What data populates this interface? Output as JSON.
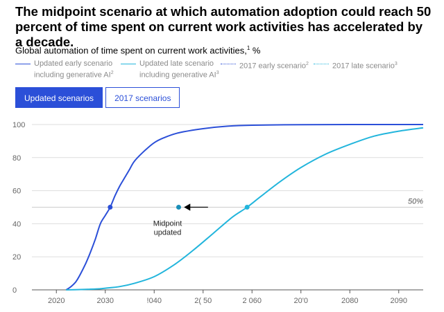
{
  "headline": "The midpoint scenario at which automation adoption could reach 50 percent of time spent on current work activities has accelerated by a decade.",
  "subtitle": {
    "text": "Global automation of time spent on current work activities,",
    "footnote": "1",
    "unit": " %"
  },
  "legend": [
    {
      "label": "Updated early scenario\nincluding generative AI",
      "footnote": "2",
      "color": "#2b4fd8",
      "style": "solid"
    },
    {
      "label": "Updated late scenario\nincluding generative AI",
      "footnote": "3",
      "color": "#22b5dc",
      "style": "solid"
    },
    {
      "label": "2017 early scenario",
      "footnote": "2",
      "color": "#2b4fd8",
      "style": "dotted"
    },
    {
      "label": "2017 late scenario",
      "footnote": "3",
      "color": "#22b5dc",
      "style": "dotted"
    }
  ],
  "tabs": {
    "active": "Updated scenarios",
    "inactive": "2017 scenarios"
  },
  "colors": {
    "early": "#2b4fd8",
    "late": "#22b5dc",
    "arrow": "#000000",
    "gridline": "#dddddd",
    "reference": "#cccccc"
  },
  "chart_data": {
    "type": "line",
    "xlim": [
      2015,
      2095
    ],
    "ylim": [
      0,
      100
    ],
    "x_ticks": [
      "2020",
      "2030",
      "!040",
      "2( 50",
      "2 060",
      "20'0",
      "2080",
      "2090"
    ],
    "x_tick_values": [
      2020,
      2030,
      2040,
      2050,
      2060,
      2070,
      2080,
      2090
    ],
    "y_ticks": [
      0,
      20,
      40,
      60,
      80,
      100
    ],
    "grid": true,
    "series": [
      {
        "name": "Updated early scenario including generative AI",
        "x": [
          2022,
          2023,
          2024,
          2025,
          2026,
          2027,
          2028,
          2029,
          2030,
          2031,
          2032,
          2033,
          2034,
          2035,
          2036,
          2038,
          2040,
          2042,
          2045,
          2050,
          2055,
          2060,
          2070,
          2080,
          2090,
          2095
        ],
        "y": [
          0,
          2,
          5,
          10,
          16,
          23,
          31,
          40,
          45,
          50,
          57,
          63,
          68,
          73,
          78,
          84,
          89,
          92,
          95,
          97.5,
          99,
          99.6,
          99.9,
          100,
          100,
          100
        ]
      },
      {
        "name": "Updated late scenario including generative AI",
        "x": [
          2022,
          2025,
          2028,
          2030,
          2033,
          2036,
          2040,
          2044,
          2048,
          2052,
          2056,
          2059,
          2062,
          2066,
          2070,
          2075,
          2080,
          2085,
          2090,
          2095
        ],
        "y": [
          0,
          0.2,
          0.5,
          1,
          2,
          4,
          8,
          15,
          24,
          34,
          44,
          50,
          57,
          66,
          74,
          82,
          88,
          93,
          96,
          98
        ]
      }
    ],
    "reference_line": {
      "y": 50,
      "label": "50%"
    },
    "midpoints": [
      {
        "series": 0,
        "x": 2031,
        "y": 50
      },
      {
        "series": 1,
        "x": 2059,
        "y": 50
      }
    ],
    "annotation": {
      "text_line1": "Midpoint",
      "text_line2": "updated",
      "dot_x": 2045,
      "y": 50,
      "arrow_from_x": 2051
    }
  }
}
